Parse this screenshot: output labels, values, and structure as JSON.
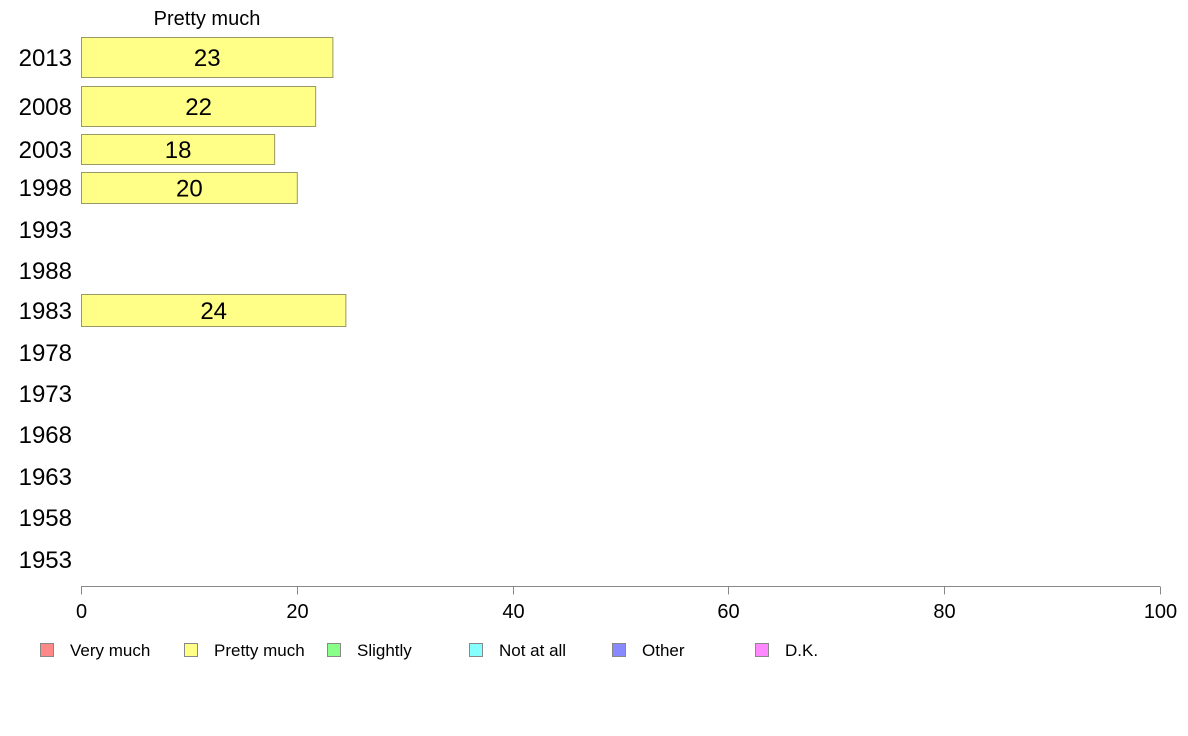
{
  "chart_data": {
    "type": "bar",
    "orientation": "horizontal",
    "series_title": "Pretty much",
    "categories": [
      "2013",
      "2008",
      "2003",
      "1998",
      "1993",
      "1988",
      "1983",
      "1978",
      "1973",
      "1968",
      "1963",
      "1958",
      "1953"
    ],
    "series": [
      {
        "name": "Pretty much",
        "color": "#ffff88",
        "values": [
          23,
          22,
          18,
          20,
          null,
          null,
          24,
          null,
          null,
          null,
          null,
          null,
          null
        ],
        "plotted_values": [
          23.3,
          21.7,
          17.9,
          20.0,
          null,
          null,
          24.5,
          null,
          null,
          null,
          null,
          null,
          null
        ]
      }
    ],
    "xlim": [
      0,
      100
    ],
    "xticks": [
      "0",
      "20",
      "40",
      "60",
      "80",
      "100"
    ],
    "grid": false,
    "legend_position": "bottom",
    "legend": [
      {
        "label": "Very much",
        "color": "#ff8888"
      },
      {
        "label": "Pretty much",
        "color": "#ffff88"
      },
      {
        "label": "Slightly",
        "color": "#88ff88"
      },
      {
        "label": "Not at all",
        "color": "#88ffff"
      },
      {
        "label": "Other",
        "color": "#8888ff"
      },
      {
        "label": "D.K.",
        "color": "#ff88ff"
      }
    ]
  }
}
